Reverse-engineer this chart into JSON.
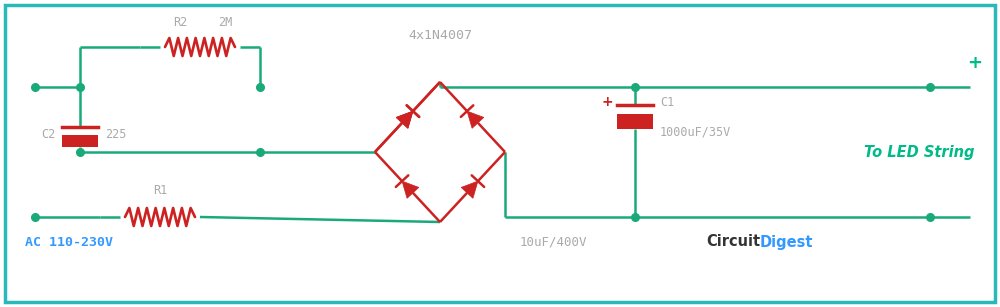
{
  "bg_color": "#ffffff",
  "border_color": "#29b9b9",
  "wire_color": "#1aaa7a",
  "component_color": "#cc2222",
  "label_color_gray": "#aaaaaa",
  "label_color_blue": "#3399ff",
  "label_color_green": "#00bb88",
  "node_color": "#1aaa7a",
  "figsize": [
    10.0,
    3.07
  ],
  "dpi": 100,
  "xlim": [
    0,
    100
  ],
  "ylim": [
    0,
    30.7
  ]
}
